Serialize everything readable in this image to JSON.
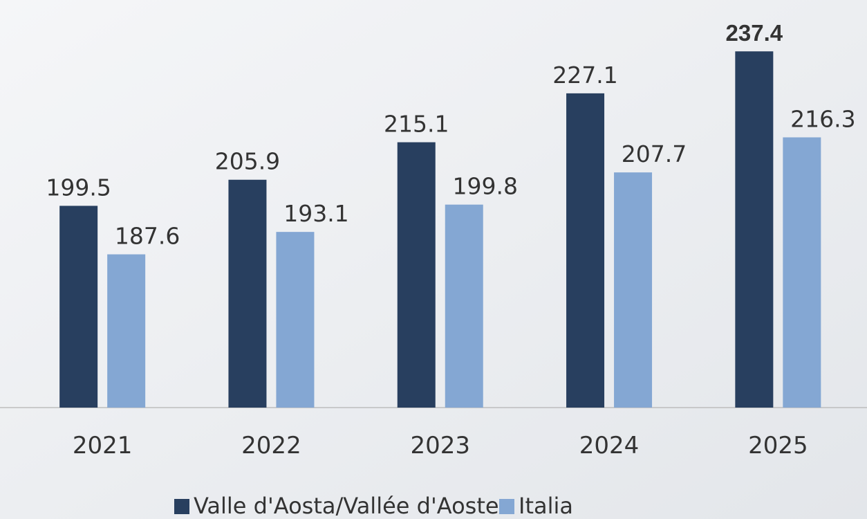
{
  "chart_data": {
    "type": "bar",
    "categories": [
      "2021",
      "2022",
      "2023",
      "2024",
      "2025"
    ],
    "series": [
      {
        "name": "Valle d'Aosta/Vallée d'Aoste",
        "color": "#283f5f",
        "values": [
          199.5,
          205.9,
          215.1,
          227.1,
          237.4
        ]
      },
      {
        "name": "Italia",
        "color": "#84a7d3",
        "values": [
          187.6,
          193.1,
          199.8,
          207.7,
          216.3
        ]
      }
    ],
    "ylim": [
      150,
      250
    ],
    "highlight": {
      "series": 0,
      "index": 4
    },
    "legend": "bottom"
  }
}
